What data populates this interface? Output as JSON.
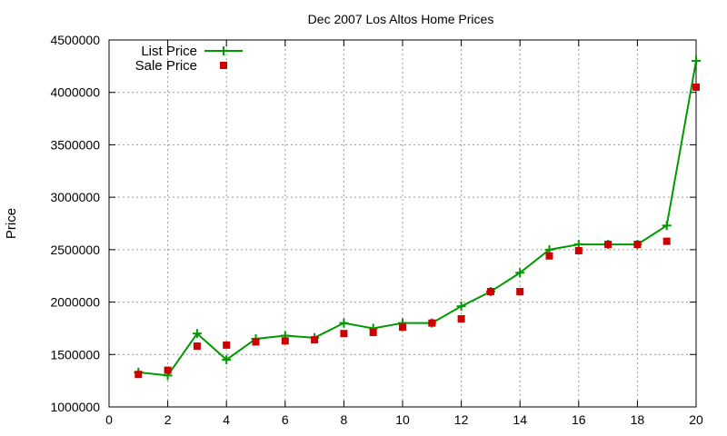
{
  "chart_data": {
    "type": "line",
    "title": "Dec 2007 Los Altos Home Prices",
    "xlabel": "",
    "ylabel": "Price",
    "xlim": [
      0,
      20
    ],
    "ylim": [
      1000000,
      4500000
    ],
    "x_ticks": [
      0,
      2,
      4,
      6,
      8,
      10,
      12,
      14,
      16,
      18,
      20
    ],
    "y_ticks": [
      1000000,
      1500000,
      2000000,
      2500000,
      3000000,
      3500000,
      4000000,
      4500000
    ],
    "grid": true,
    "legend_position": "top-left",
    "series": [
      {
        "name": "List Price",
        "style": "linespoints",
        "marker": "plus",
        "color": "#009900",
        "x": [
          1,
          2,
          3,
          4,
          5,
          6,
          7,
          8,
          9,
          10,
          11,
          12,
          13,
          14,
          15,
          16,
          17,
          18,
          19,
          20
        ],
        "values": [
          1330000,
          1300000,
          1700000,
          1450000,
          1650000,
          1680000,
          1660000,
          1800000,
          1750000,
          1800000,
          1800000,
          1960000,
          2100000,
          2280000,
          2500000,
          2550000,
          2550000,
          2550000,
          2730000,
          4300000
        ]
      },
      {
        "name": "Sale Price",
        "style": "points",
        "marker": "square",
        "color": "#cc0000",
        "x": [
          1,
          2,
          3,
          4,
          5,
          6,
          7,
          8,
          9,
          10,
          11,
          12,
          13,
          14,
          15,
          16,
          17,
          18,
          19,
          20
        ],
        "values": [
          1310000,
          1350000,
          1580000,
          1590000,
          1620000,
          1630000,
          1640000,
          1700000,
          1710000,
          1760000,
          1800000,
          1840000,
          2100000,
          2100000,
          2440000,
          2490000,
          2550000,
          2550000,
          2580000,
          4050000
        ]
      }
    ]
  }
}
